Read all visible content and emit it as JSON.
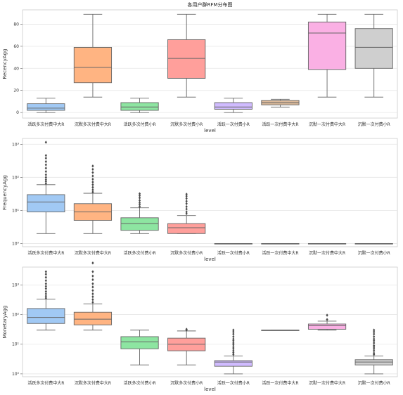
{
  "chart_data": [
    {
      "type": "box",
      "title": "各用户群RFM分布图",
      "xlabel": "level",
      "ylabel": "RecencyAgg",
      "yscale": "linear",
      "ylim": [
        -5,
        93
      ],
      "yticks": [
        0,
        20,
        40,
        60,
        80
      ],
      "grid": true,
      "categories": [
        "活跃多次付费中大R",
        "沉默多次付费中大R",
        "活跃多次付费小R",
        "沉默多次付费小R",
        "活跃一次付费小R",
        "活跃一次付费中大R",
        "沉默一次付费中大R",
        "沉默一次付费小R"
      ],
      "colors": [
        "#a1c9f4",
        "#ffb482",
        "#8de5a1",
        "#ff9f9b",
        "#d0bbff",
        "#debb9b",
        "#fab0e4",
        "#cfcfcf"
      ],
      "boxes": [
        {
          "whislo": 0,
          "q1": 2,
          "med": 4,
          "q3": 8,
          "whishi": 13,
          "fliers": []
        },
        {
          "whislo": 14,
          "q1": 27,
          "med": 41,
          "q3": 59,
          "whishi": 89,
          "fliers": []
        },
        {
          "whislo": 0,
          "q1": 2,
          "med": 5,
          "q3": 9,
          "whishi": 13,
          "fliers": []
        },
        {
          "whislo": 14,
          "q1": 31,
          "med": 49,
          "q3": 66,
          "whishi": 89,
          "fliers": []
        },
        {
          "whislo": 0,
          "q1": 3,
          "med": 5,
          "q3": 9,
          "whishi": 13,
          "fliers": []
        },
        {
          "whislo": 5,
          "q1": 7,
          "med": 9,
          "q3": 11,
          "whishi": 12,
          "fliers": []
        },
        {
          "whislo": 14,
          "q1": 39,
          "med": 72,
          "q3": 82,
          "whishi": 89,
          "fliers": []
        },
        {
          "whislo": 14,
          "q1": 40,
          "med": 59,
          "q3": 76,
          "whishi": 89,
          "fliers": []
        }
      ]
    },
    {
      "type": "box",
      "title": "",
      "xlabel": "level",
      "ylabel": "FrequencyAgg",
      "yscale": "log",
      "ylim": [
        0.8,
        1500
      ],
      "yticks": [
        1,
        10,
        100,
        1000
      ],
      "ytick_labels": [
        "10⁰",
        "10¹",
        "10²",
        "10³"
      ],
      "grid": true,
      "categories": [
        "活跃多次付费中大R",
        "沉默多次付费中大R",
        "活跃多次付费小R",
        "沉默多次付费小R",
        "活跃一次付费小R",
        "活跃一次付费中大R",
        "沉默一次付费中大R",
        "沉默一次付费小R"
      ],
      "colors": [
        "#a1c9f4",
        "#ffb482",
        "#8de5a1",
        "#ff9f9b",
        "#d0bbff",
        "#debb9b",
        "#fab0e4",
        "#cfcfcf"
      ],
      "boxes": [
        {
          "whislo": 2,
          "q1": 9,
          "med": 18,
          "q3": 30,
          "whishi": 60,
          "fliers": [
            65,
            75,
            85,
            100,
            120,
            150,
            190,
            240,
            300,
            380,
            460,
            1150
          ]
        },
        {
          "whislo": 2,
          "q1": 5,
          "med": 9,
          "q3": 16,
          "whishi": 33,
          "fliers": [
            36,
            42,
            50,
            60,
            72,
            88,
            110,
            140,
            175,
            220
          ]
        },
        {
          "whislo": 2,
          "q1": 2.5,
          "med": 4,
          "q3": 6,
          "whishi": 12,
          "fliers": [
            13,
            15,
            17,
            20,
            24,
            28,
            32
          ]
        },
        {
          "whislo": 2,
          "q1": 2,
          "med": 3,
          "q3": 4,
          "whishi": 7,
          "fliers": [
            8,
            9,
            11,
            13,
            16,
            19,
            23,
            27,
            31
          ]
        },
        {
          "whislo": 1,
          "q1": 1,
          "med": 1,
          "q3": 1,
          "whishi": 1,
          "fliers": []
        },
        {
          "whislo": 1,
          "q1": 1,
          "med": 1,
          "q3": 1,
          "whishi": 1,
          "fliers": []
        },
        {
          "whislo": 1,
          "q1": 1,
          "med": 1,
          "q3": 1,
          "whishi": 1,
          "fliers": []
        },
        {
          "whislo": 1,
          "q1": 1,
          "med": 1,
          "q3": 1,
          "whishi": 1,
          "fliers": []
        }
      ]
    },
    {
      "type": "box",
      "title": "",
      "xlabel": "level",
      "ylabel": "MonetaryAgg",
      "yscale": "log",
      "ylim": [
        0.8,
        4000
      ],
      "yticks": [
        1,
        10,
        100,
        1000
      ],
      "ytick_labels": [
        "10⁰",
        "10¹",
        "10²",
        "10³"
      ],
      "grid": true,
      "categories": [
        "活跃多次付费中大R",
        "沉默多次付费中大R",
        "活跃多次付费小R",
        "沉默多次付费小R",
        "活跃一次付费小R",
        "活跃一次付费中大R",
        "沉默一次付费中大R",
        "沉默一次付费小R"
      ],
      "colors": [
        "#a1c9f4",
        "#ffb482",
        "#8de5a1",
        "#ff9f9b",
        "#d0bbff",
        "#debb9b",
        "#fab0e4",
        "#cfcfcf"
      ],
      "boxes": [
        {
          "whislo": 30,
          "q1": 50,
          "med": 80,
          "q3": 160,
          "whishi": 330,
          "fliers": [
            360,
            420,
            500,
            600,
            750,
            900,
            1100,
            1400,
            1800,
            2300,
            2800
          ]
        },
        {
          "whislo": 30,
          "q1": 45,
          "med": 70,
          "q3": 120,
          "whishi": 230,
          "fliers": [
            260,
            320,
            400,
            500,
            650,
            850,
            1100,
            1500,
            2000,
            2800,
            5500
          ]
        },
        {
          "whislo": 2,
          "q1": 7,
          "med": 12,
          "q3": 18,
          "whishi": 30,
          "fliers": []
        },
        {
          "whislo": 2,
          "q1": 6,
          "med": 10,
          "q3": 16,
          "whishi": 28,
          "fliers": [
            30,
            32
          ]
        },
        {
          "whislo": 1,
          "q1": 1.8,
          "med": 2.5,
          "q3": 2.8,
          "whishi": 4,
          "fliers": [
            4.5,
            5.2,
            6,
            7,
            8,
            9.5,
            11,
            13,
            15,
            18,
            22,
            26,
            30
          ]
        },
        {
          "whislo": 30,
          "q1": 30,
          "med": 30,
          "q3": 30,
          "whishi": 30,
          "fliers": []
        },
        {
          "whislo": 30,
          "q1": 32,
          "med": 42,
          "q3": 48,
          "whishi": 60,
          "fliers": [
            68,
            95
          ]
        },
        {
          "whislo": 1,
          "q1": 2,
          "med": 2.5,
          "q3": 3,
          "whishi": 4,
          "fliers": [
            4.5,
            5,
            6,
            7,
            8,
            9,
            11,
            13,
            15,
            18,
            22,
            26,
            30
          ]
        }
      ]
    }
  ]
}
